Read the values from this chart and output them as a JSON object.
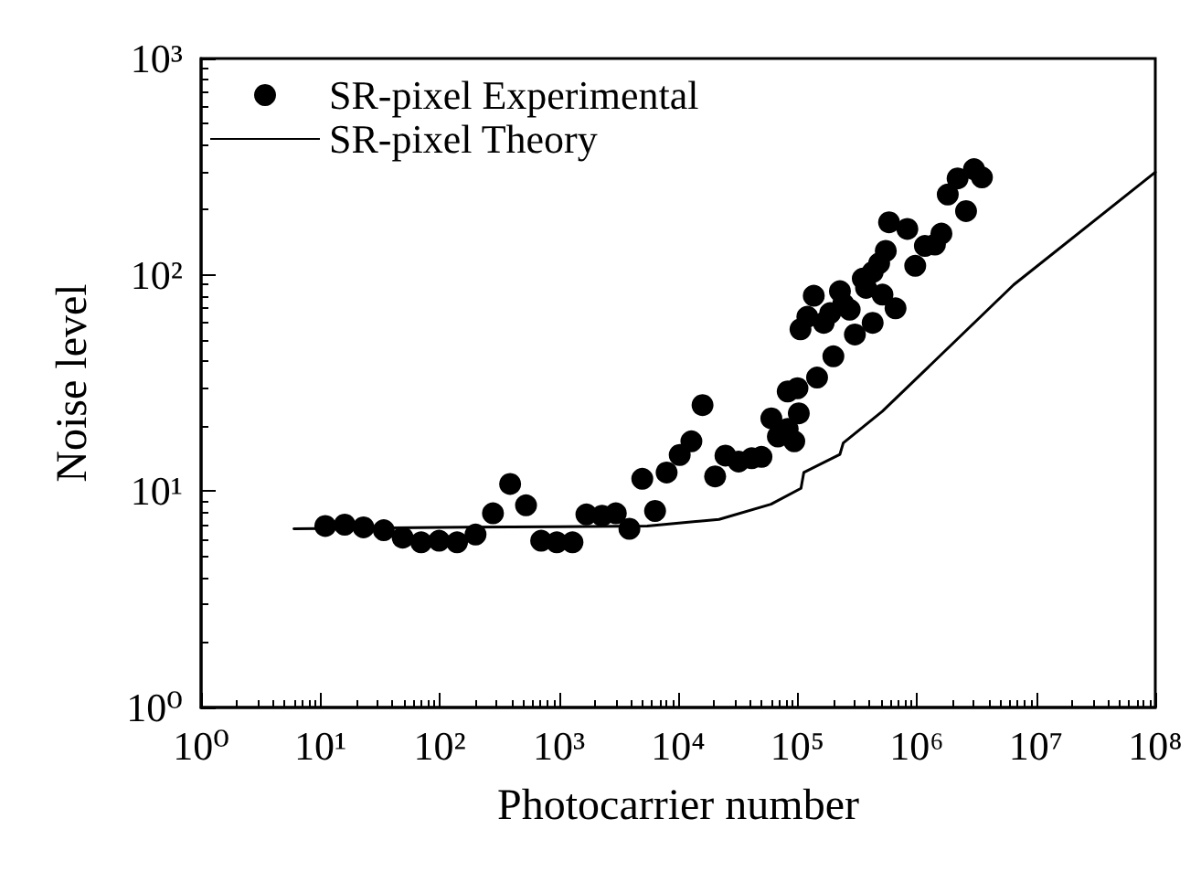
{
  "chart_data": {
    "type": "scatter",
    "xlabel": "Photocarrier number",
    "ylabel": "Noise level",
    "log": "xy",
    "grid": false,
    "legend": "top left",
    "marker": "circle",
    "xlim": [
      1,
      100000000
    ],
    "ylim": [
      1,
      1000
    ],
    "xticks": [
      {
        "value": 1,
        "label": "10⁰"
      },
      {
        "value": 10,
        "label": "10¹"
      },
      {
        "value": 100,
        "label": "10²"
      },
      {
        "value": 1000,
        "label": "10³"
      },
      {
        "value": 10000,
        "label": "10⁴"
      },
      {
        "value": 100000,
        "label": "10⁵"
      },
      {
        "value": 1000000,
        "label": "10⁶"
      },
      {
        "value": 10000000,
        "label": "10⁷"
      },
      {
        "value": 100000000,
        "label": "10⁸"
      }
    ],
    "yticks": [
      {
        "value": 1,
        "label": "10⁰"
      },
      {
        "value": 10,
        "label": "10¹"
      },
      {
        "value": 100,
        "label": "10²"
      },
      {
        "value": 1000,
        "label": "10³"
      }
    ],
    "series": [
      {
        "name": "SR-pixel Experimental",
        "color": "#000000",
        "x": [
          11,
          16,
          23,
          34,
          49,
          70,
          99,
          140,
          200,
          280,
          390,
          530,
          710,
          960,
          1300,
          1700,
          2300,
          3000,
          3900,
          5000,
          6400,
          8000,
          10300,
          12900,
          16000,
          20400,
          24900,
          32100,
          41300,
          49900,
          60400,
          68500,
          82800,
          94000,
          102600,
          82800,
          100000,
          146000,
          200000,
          106000,
          121000,
          137000,
          166000,
          227000,
          274000,
          303000,
          427000,
          353000,
          427000,
          516000,
          664000,
          484000,
          550000,
          586000,
          834000,
          971000,
          1170000,
          1420000,
          1610000,
          1820000,
          2200000,
          2590000,
          3020000,
          3520000,
          242000,
          188000,
          376000
        ],
        "values": [
          6.9,
          7.0,
          6.8,
          6.6,
          6.1,
          5.8,
          5.9,
          5.8,
          6.3,
          7.9,
          10.8,
          8.6,
          5.9,
          5.8,
          5.8,
          7.8,
          7.7,
          7.9,
          6.7,
          11.4,
          8.1,
          12.2,
          14.7,
          17,
          25,
          11.7,
          14.6,
          13.7,
          14.2,
          14.4,
          21.7,
          17.9,
          19.4,
          17,
          22.9,
          28.9,
          29.9,
          33.5,
          42,
          56,
          64,
          80,
          60,
          84,
          69,
          53,
          60,
          96,
          103,
          81,
          70,
          113,
          129,
          175,
          163,
          110,
          136,
          138,
          155,
          235,
          279,
          197,
          308,
          282,
          73.5,
          66.5,
          87
        ]
      },
      {
        "name": "SR-pixel Theory",
        "type": "line",
        "color": "#000000",
        "marker": "none",
        "line_style": "solid",
        "x": [
          6,
          100,
          1000,
          5500,
          22000,
          60000,
          107000,
          113000,
          227000,
          242000,
          516000,
          6500000,
          100000000
        ],
        "values": [
          6.7,
          6.8,
          6.85,
          6.9,
          7.4,
          8.7,
          10.3,
          12.2,
          14.8,
          16.7,
          23.4,
          90,
          298
        ]
      }
    ]
  }
}
